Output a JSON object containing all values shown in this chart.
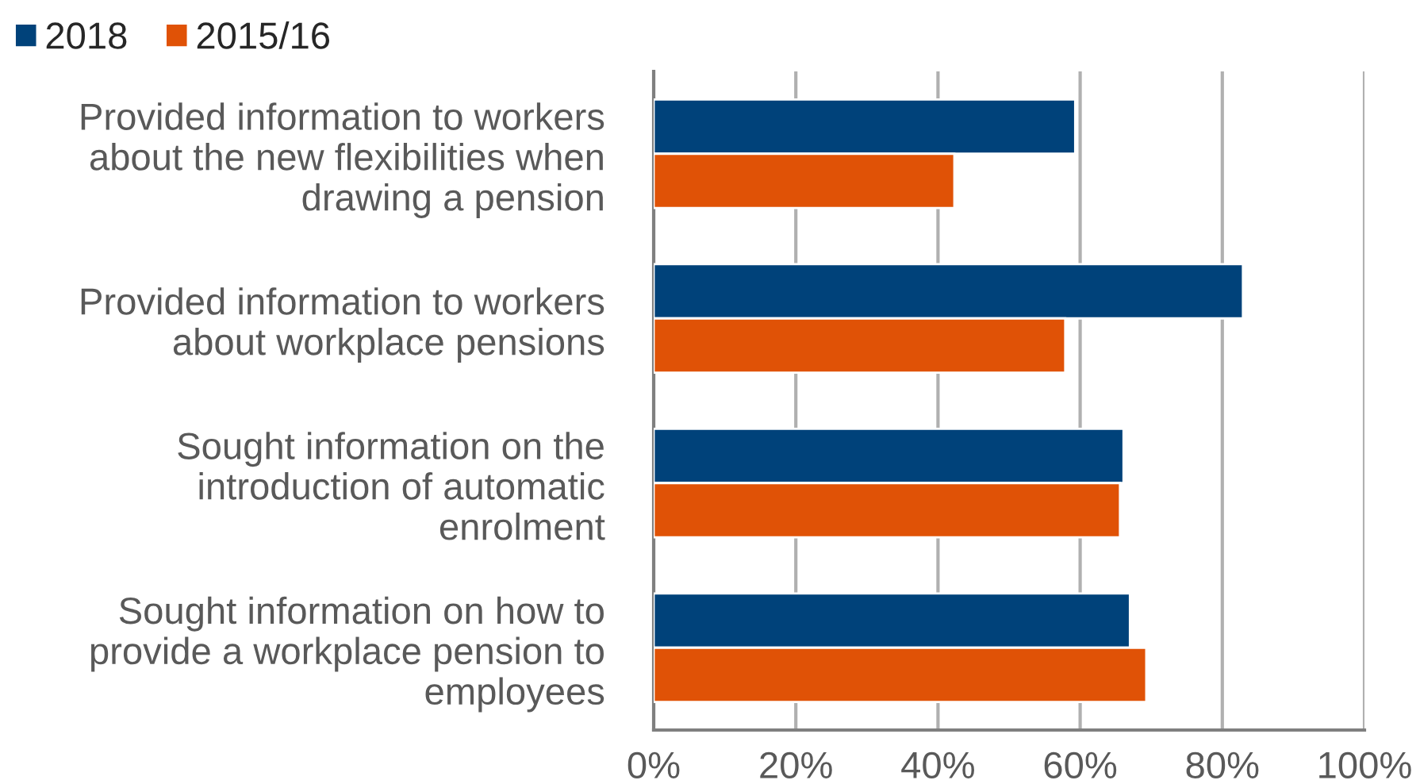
{
  "chart_data": {
    "type": "bar",
    "orientation": "horizontal",
    "categories": [
      "Provided information to workers\nabout the new flexibilities when\ndrawing a pension",
      "Provided information to workers\nabout workplace pensions",
      "Sought information on the\nintroduction of automatic\nenrolment",
      "Sought information on how to\nprovide a workplace pension to\nemployees"
    ],
    "series": [
      {
        "name": "2018",
        "color": "#00427a",
        "values": [
          59.3,
          82.9,
          66.1,
          67.0
        ]
      },
      {
        "name": "2015/16",
        "color": "#e05206",
        "values": [
          42.3,
          57.9,
          65.6,
          69.3
        ]
      }
    ],
    "xlim": [
      0,
      100
    ],
    "xticks": [
      {
        "value": 0,
        "label": "0%"
      },
      {
        "value": 20,
        "label": "20%"
      },
      {
        "value": 40,
        "label": "40%"
      },
      {
        "value": 60,
        "label": "60%"
      },
      {
        "value": 80,
        "label": "80%"
      },
      {
        "value": 100,
        "label": "100%"
      }
    ],
    "grid": "x",
    "legend": "top left"
  }
}
